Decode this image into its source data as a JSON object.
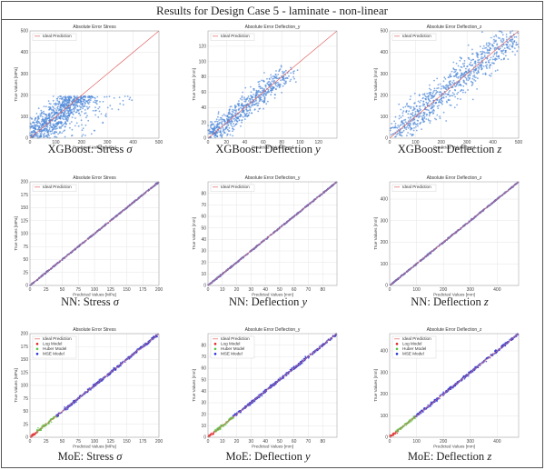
{
  "header": {
    "title": "Results for Design Case 5 - laminate - non-linear"
  },
  "colors": {
    "ideal": "#e06666",
    "xgb": "#4a86d8",
    "nn": "#4a5fc8",
    "log": "#e02020",
    "huber": "#55c840",
    "mse": "#2030d8"
  },
  "chart_data": [
    {
      "type": "scatter",
      "title": "Absolute Error Stress",
      "xlabel": "Predicted Values [MPa]",
      "ylabel": "True Values [MPa]",
      "xlim": [
        0,
        500
      ],
      "ylim": [
        0,
        500
      ],
      "xticks": [
        0,
        100,
        200,
        300,
        400,
        500
      ],
      "yticks": [
        0,
        100,
        200,
        300,
        400,
        500
      ],
      "legend": [
        "Ideal Prediction"
      ],
      "style": "xgb-stress",
      "caption": {
        "model": "XGBoost",
        "quantity": "Stress",
        "symbol": "σ"
      }
    },
    {
      "type": "scatter",
      "title": "Absolute Error Deflection_y",
      "xlabel": "Predicted Values [mm]",
      "ylabel": "True Values [mm]",
      "xlim": [
        0,
        140
      ],
      "ylim": [
        0,
        140
      ],
      "xticks": [
        0,
        20,
        40,
        60,
        80,
        100,
        120
      ],
      "yticks": [
        0,
        20,
        40,
        60,
        80,
        100,
        120
      ],
      "legend": [
        "Ideal Prediction"
      ],
      "style": "xgb-diag",
      "caption": {
        "model": "XGBoost",
        "quantity": "Deflection",
        "symbol": "y"
      }
    },
    {
      "type": "scatter",
      "title": "Absolute Error Deflection_z",
      "xlabel": "Predicted Values [mm]",
      "ylabel": "True Values [mm]",
      "xlim": [
        0,
        500
      ],
      "ylim": [
        0,
        500
      ],
      "xticks": [
        0,
        100,
        200,
        300,
        400,
        500
      ],
      "yticks": [
        0,
        100,
        200,
        300,
        400,
        500
      ],
      "legend": [
        "Ideal Prediction"
      ],
      "style": "xgb-diag-wide",
      "caption": {
        "model": "XGBoost",
        "quantity": "Deflection",
        "symbol": "z"
      }
    },
    {
      "type": "scatter",
      "title": "Absolute Error Stress",
      "xlabel": "Predicted Values [MPa]",
      "ylabel": "True Values [MPa]",
      "xlim": [
        0,
        200
      ],
      "ylim": [
        0,
        200
      ],
      "xticks": [
        0,
        25,
        50,
        75,
        100,
        125,
        150,
        175,
        200
      ],
      "yticks": [
        0,
        25,
        50,
        75,
        100,
        125,
        150,
        175,
        200
      ],
      "legend": [
        "Ideal Prediction"
      ],
      "style": "nn",
      "caption": {
        "model": "NN",
        "quantity": "Stress",
        "symbol": "σ"
      }
    },
    {
      "type": "scatter",
      "title": "Absolute Error Deflection_y",
      "xlabel": "Predicted Values [mm]",
      "ylabel": "True Values [mm]",
      "xlim": [
        0,
        90
      ],
      "ylim": [
        0,
        90
      ],
      "xticks": [
        0,
        10,
        20,
        30,
        40,
        50,
        60,
        70,
        80
      ],
      "yticks": [
        0,
        10,
        20,
        30,
        40,
        50,
        60,
        70,
        80
      ],
      "legend": [
        "Ideal Prediction"
      ],
      "style": "nn",
      "caption": {
        "model": "NN",
        "quantity": "Deflection",
        "symbol": "y"
      }
    },
    {
      "type": "scatter",
      "title": "Absolute Error Deflection_z",
      "xlabel": "Predicted Values [mm]",
      "ylabel": "True Values [mm]",
      "xlim": [
        0,
        480
      ],
      "ylim": [
        0,
        480
      ],
      "xticks": [
        0,
        100,
        200,
        300,
        400
      ],
      "yticks": [
        0,
        100,
        200,
        300,
        400
      ],
      "legend": [
        "Ideal Prediction"
      ],
      "style": "nn",
      "caption": {
        "model": "NN",
        "quantity": "Deflection",
        "symbol": "z"
      }
    },
    {
      "type": "scatter",
      "title": "Absolute Error Stress",
      "xlabel": "Predicted Values [MPa]",
      "ylabel": "True Values [MPa]",
      "xlim": [
        0,
        200
      ],
      "ylim": [
        0,
        200
      ],
      "xticks": [
        0,
        25,
        50,
        75,
        100,
        125,
        150,
        175,
        200
      ],
      "yticks": [
        0,
        25,
        50,
        75,
        100,
        125,
        150,
        175,
        200
      ],
      "legend": [
        "Ideal Prediction",
        "Log Model",
        "Huber Model",
        "MSE Model"
      ],
      "style": "moe",
      "caption": {
        "model": "MoE",
        "quantity": "Stress",
        "symbol": "σ"
      }
    },
    {
      "type": "scatter",
      "title": "Absolute Error Deflection_y",
      "xlabel": "Predicted Values [mm]",
      "ylabel": "True Values [mm]",
      "xlim": [
        0,
        90
      ],
      "ylim": [
        0,
        90
      ],
      "xticks": [
        0,
        10,
        20,
        30,
        40,
        50,
        60,
        70,
        80
      ],
      "yticks": [
        0,
        10,
        20,
        30,
        40,
        50,
        60,
        70,
        80
      ],
      "legend": [
        "Ideal Prediction",
        "Log Model",
        "Huber Model",
        "MSE Model"
      ],
      "style": "moe",
      "caption": {
        "model": "MoE",
        "quantity": "Deflection",
        "symbol": "y"
      }
    },
    {
      "type": "scatter",
      "title": "Absolute Error Deflection_z",
      "xlabel": "Predicted Values [mm]",
      "ylabel": "True Values [mm]",
      "xlim": [
        0,
        480
      ],
      "ylim": [
        0,
        480
      ],
      "xticks": [
        0,
        100,
        200,
        300,
        400
      ],
      "yticks": [
        0,
        100,
        200,
        300,
        400
      ],
      "legend": [
        "Ideal Prediction",
        "Log Model",
        "Huber Model",
        "MSE Model"
      ],
      "style": "moe",
      "caption": {
        "model": "MoE",
        "quantity": "Deflection",
        "symbol": "z"
      }
    }
  ]
}
